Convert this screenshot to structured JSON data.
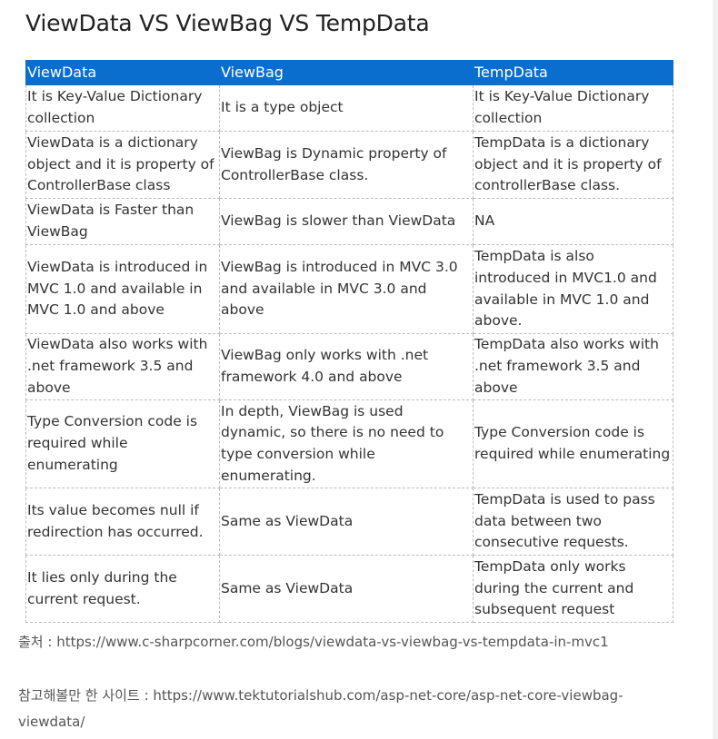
{
  "title": "ViewData VS ViewBag VS TempData",
  "table": {
    "headers": [
      "ViewData",
      "ViewBag",
      "TempData"
    ],
    "rows": [
      [
        "It is Key-Value Dictionary collection",
        "It is a type object",
        "It is Key-Value Dictionary collection"
      ],
      [
        "ViewData is a dictionary object and it is property of ControllerBase class",
        "ViewBag is Dynamic property of ControllerBase class.",
        "TempData is a dictionary object and it is property of controllerBase class."
      ],
      [
        "ViewData is Faster than ViewBag",
        "ViewBag is slower than ViewData",
        "NA"
      ],
      [
        "ViewData is introduced in MVC 1.0 and available in MVC 1.0 and above",
        "ViewBag is introduced in MVC 3.0 and available in MVC 3.0 and above",
        "TempData is also introduced in MVC1.0 and available in MVC 1.0 and above."
      ],
      [
        "ViewData also works with .net framework 3.5 and above",
        "ViewBag only works with .net framework 4.0 and above",
        "TempData also works with .net framework 3.5 and above"
      ],
      [
        "Type Conversion code is required while enumerating",
        "In depth, ViewBag is used dynamic, so there is no need to type conversion while enumerating.",
        "Type Conversion code is required while enumerating"
      ],
      [
        "Its value becomes null if redirection has occurred.",
        "Same as ViewData",
        "TempData is used to pass data between two consecutive requests."
      ],
      [
        "It lies only during the current request.",
        "Same as ViewData",
        "TempData only works during the current and subsequent request"
      ]
    ]
  },
  "source_line": "출처 : https://www.c-sharpcorner.com/blogs/viewdata-vs-viewbag-vs-tempdata-in-mvc1",
  "reference_line": "참고해볼만 한 사이트 : https://www.tektutorialshub.com/asp-net-core/asp-net-core-viewbag-viewdata/",
  "colors": {
    "header_bg": "#0a6ecf",
    "header_text": "#ffffff",
    "border": "#bdbdbd",
    "text": "#333333"
  }
}
